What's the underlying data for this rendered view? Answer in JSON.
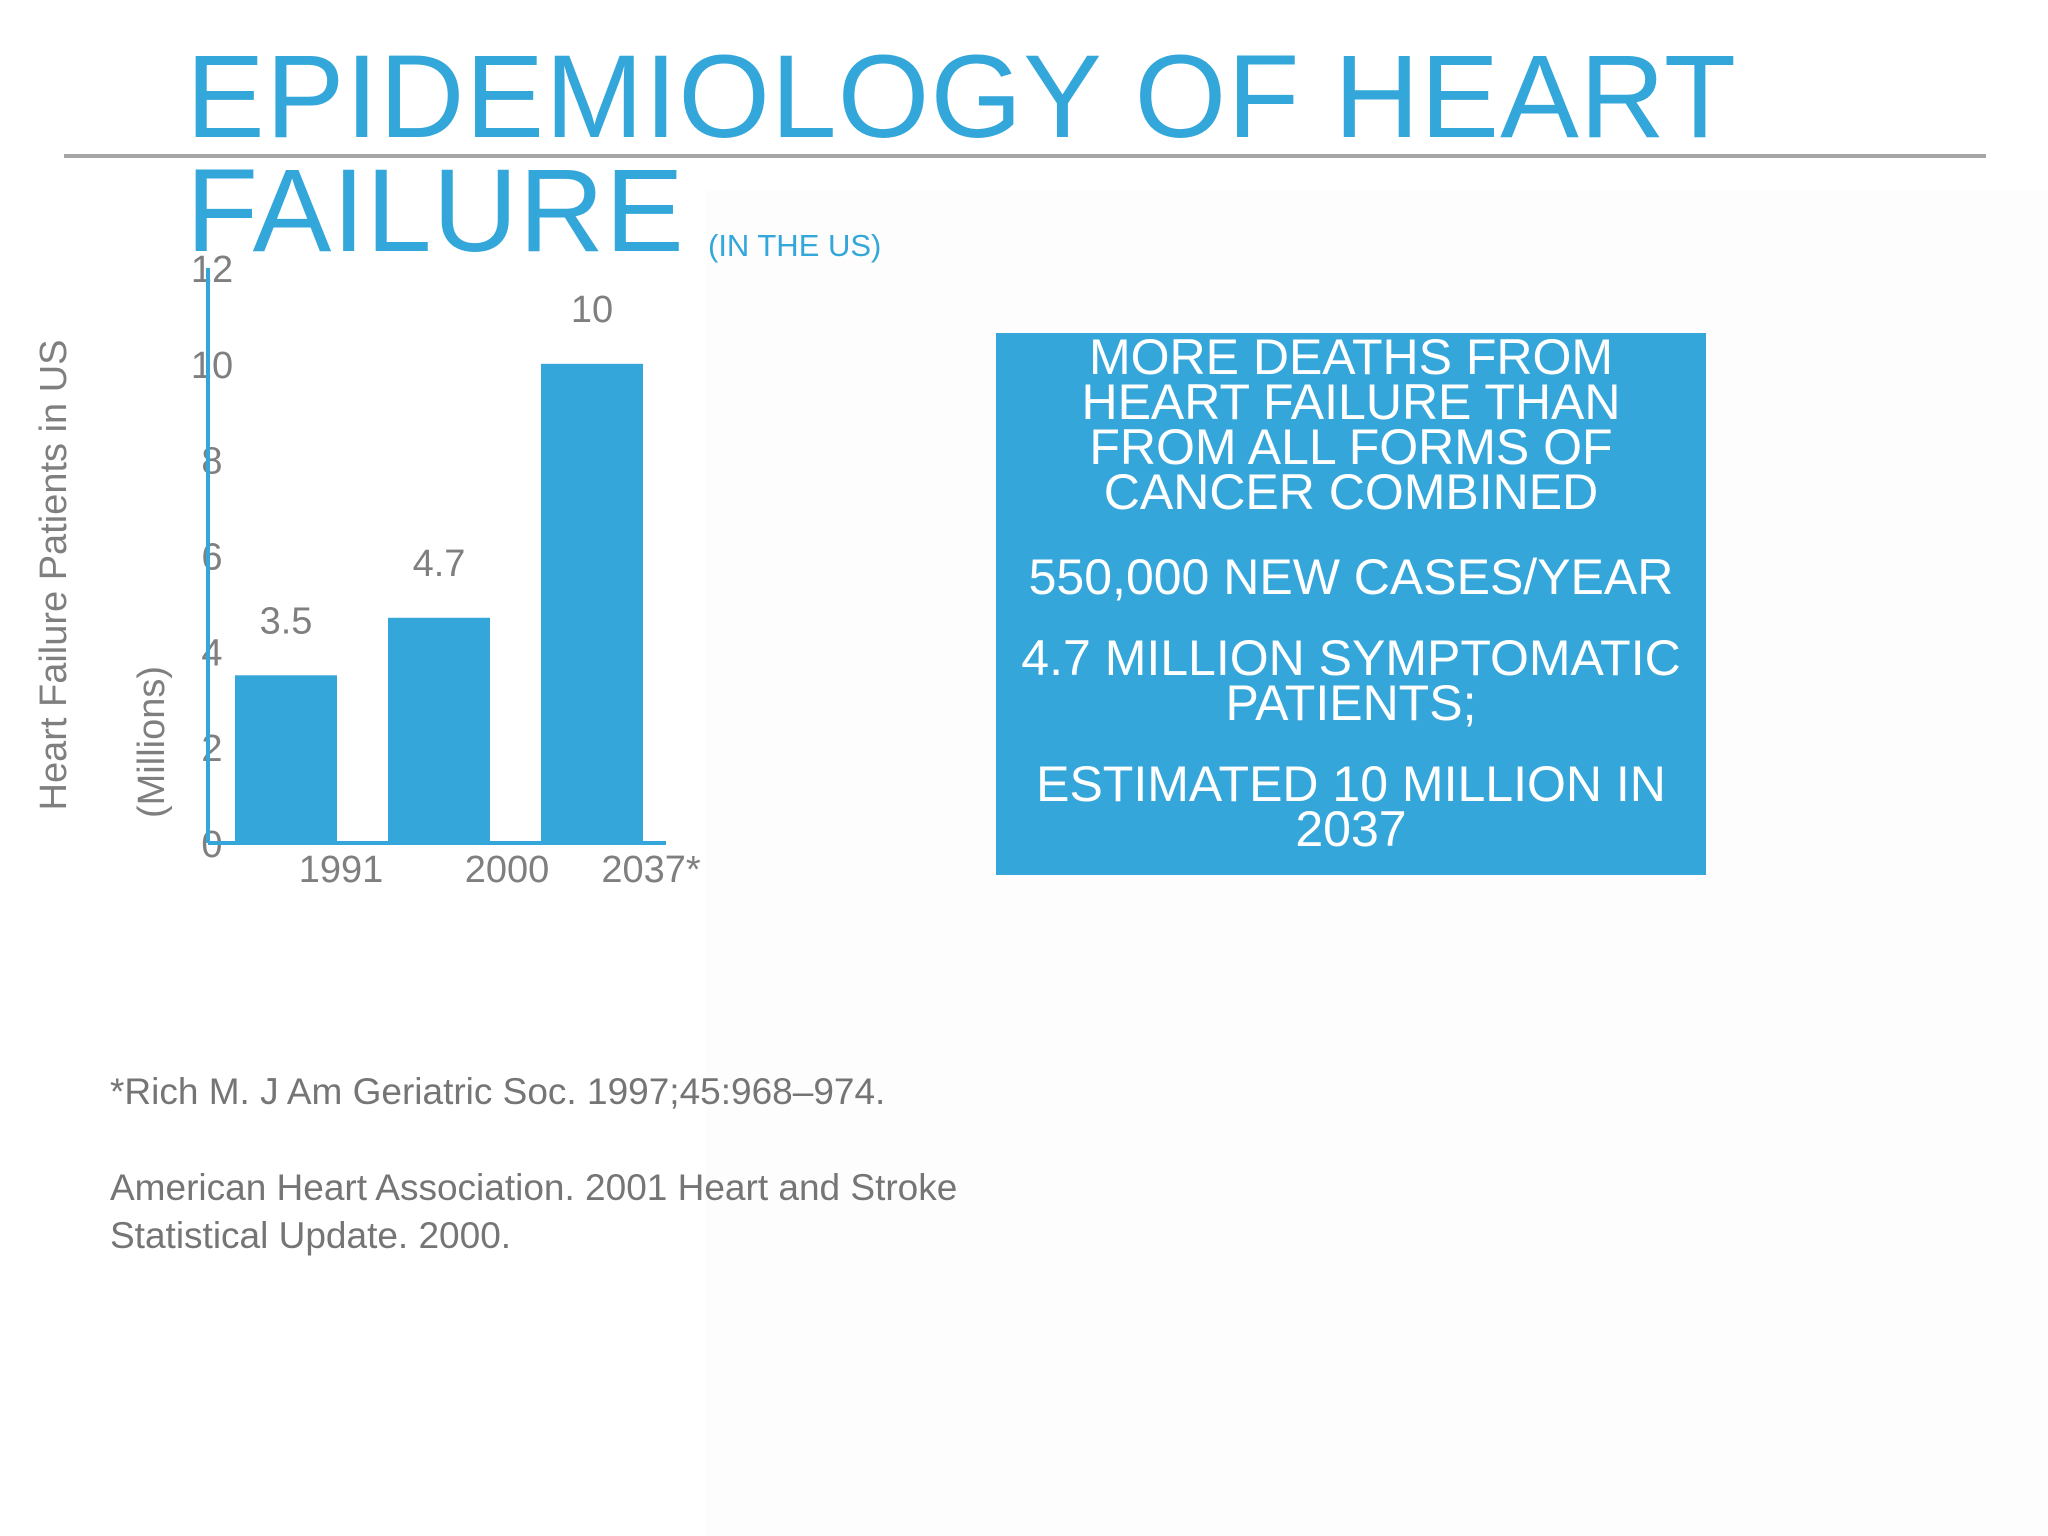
{
  "slide": {
    "title_line1": "EPIDEMIOLOGY OF HEART",
    "title_line2": "FAILURE",
    "subtitle": "(IN THE US)"
  },
  "callout": {
    "line1": "MORE DEATHS FROM HEART FAILURE THAN FROM ALL FORMS OF CANCER COMBINED",
    "line2": "550,000 NEW CASES/YEAR",
    "line3": "4.7 MILLION SYMPTOMATIC PATIENTS;",
    "line4": "ESTIMATED 10 MILLION IN 2037",
    "color": "#35a6da"
  },
  "references": {
    "ref1": "*Rich M. J Am Geriatric Soc. 1997;45:968–974.",
    "ref2": "American Heart Association. 2001 Heart and Stroke Statistical Update. 2000."
  },
  "chart_data": {
    "type": "bar",
    "categories": [
      "1991",
      "2000",
      "2037*"
    ],
    "values": [
      3.5,
      4.7,
      10
    ],
    "data_labels": [
      "3.5",
      "4.7",
      "10"
    ],
    "ylabel": "Heart Failure Patients in US",
    "ylabel_unit": "(Millions)",
    "ylim": [
      0,
      12
    ],
    "yticks": [
      0,
      2,
      4,
      6,
      8,
      10,
      12
    ],
    "grid": false,
    "bar_color": "#35a6da",
    "axis_color": "#35a6da",
    "text_color": "#7f7f7f"
  }
}
